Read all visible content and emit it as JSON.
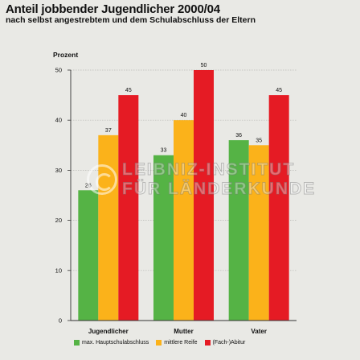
{
  "title": "Anteil jobbender Jugendlicher 2000/04",
  "subtitle": "nach selbst angestrebtem und dem Schulabschluss der Eltern",
  "watermark": {
    "line1": "LEIBNIZ-INSTITUT",
    "line2": "FÜR LÄNDERKUNDE"
  },
  "chart_data": {
    "type": "bar",
    "title": "Anteil jobbender Jugendlicher 2000/04",
    "subtitle": "nach selbst angestrebtem und dem Schulabschluss der Eltern",
    "ylabel": "Prozent",
    "xlabel": "",
    "ylim": [
      0,
      50
    ],
    "yticks": [
      0,
      10,
      20,
      30,
      40,
      50
    ],
    "grid": true,
    "legend": "bottom",
    "categories": [
      "Jugendlicher",
      "Mutter",
      "Vater"
    ],
    "series": [
      {
        "name": "max. Hauptschulabschluss",
        "color": "#55b345",
        "values": [
          26,
          33,
          36
        ]
      },
      {
        "name": "mittlere Reife",
        "color": "#fbb21a",
        "values": [
          37,
          40,
          35
        ]
      },
      {
        "name": "(Fach-)Abitur",
        "color": "#e51b24",
        "values": [
          45,
          50,
          45
        ]
      }
    ]
  }
}
